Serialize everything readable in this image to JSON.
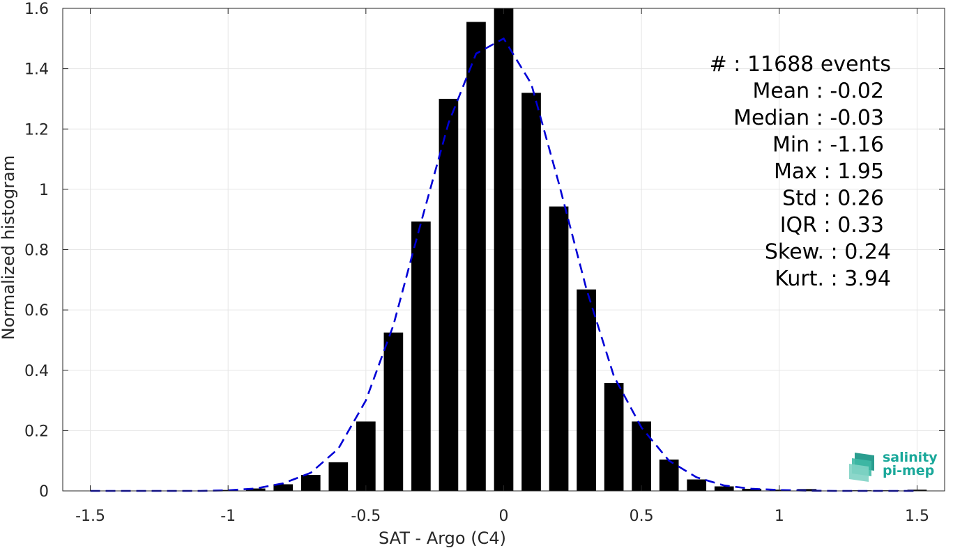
{
  "chart_data": {
    "type": "bar",
    "xlabel": "SAT - Argo (C4)",
    "ylabel": "Normalized histogram",
    "xlim": [
      -1.6,
      1.6
    ],
    "ylim": [
      0,
      1.6
    ],
    "xticks": [
      -1.5,
      -1,
      -0.5,
      0,
      0.5,
      1,
      1.5
    ],
    "xtick_labels": [
      "-1.5",
      "-1",
      "-0.5",
      "0",
      "0.5",
      "1",
      "1.5"
    ],
    "yticks": [
      0,
      0.2,
      0.4,
      0.6,
      0.8,
      1,
      1.2,
      1.4,
      1.6
    ],
    "ytick_labels": [
      "0",
      "0.2",
      "0.4",
      "0.6",
      "0.8",
      "1",
      "1.2",
      "1.4",
      "1.6"
    ],
    "grid": true,
    "bar_color": "#000000",
    "bar_width": 0.07,
    "bars": {
      "x": [
        -1.5,
        -1.4,
        -1.3,
        -1.2,
        -1.1,
        -1.0,
        -0.9,
        -0.8,
        -0.7,
        -0.6,
        -0.5,
        -0.4,
        -0.3,
        -0.2,
        -0.1,
        0.0,
        0.1,
        0.2,
        0.3,
        0.4,
        0.5,
        0.6,
        0.7,
        0.8,
        0.9,
        1.0,
        1.1,
        1.2,
        1.3,
        1.4,
        1.5
      ],
      "values": [
        0,
        0,
        0,
        0,
        0,
        0.003,
        0.008,
        0.022,
        0.053,
        0.095,
        0.23,
        0.525,
        0.893,
        1.3,
        1.555,
        1.6,
        1.32,
        0.943,
        0.668,
        0.358,
        0.23,
        0.104,
        0.038,
        0.015,
        0.007,
        0.004,
        0.006,
        0,
        0.002,
        0.002,
        0.004
      ]
    },
    "fit_curve": {
      "style": "dashed",
      "color": "#0000d6",
      "x": [
        -1.5,
        -1.4,
        -1.3,
        -1.2,
        -1.1,
        -1.0,
        -0.9,
        -0.8,
        -0.7,
        -0.6,
        -0.5,
        -0.4,
        -0.3,
        -0.2,
        -0.1,
        0.0,
        0.1,
        0.2,
        0.3,
        0.4,
        0.5,
        0.6,
        0.7,
        0.8,
        0.9,
        1.0,
        1.1,
        1.2,
        1.3,
        1.4,
        1.5
      ],
      "y": [
        0,
        0,
        0,
        0,
        0,
        0.002,
        0.008,
        0.025,
        0.06,
        0.14,
        0.3,
        0.55,
        0.89,
        1.22,
        1.45,
        1.5,
        1.35,
        1.02,
        0.67,
        0.38,
        0.21,
        0.1,
        0.045,
        0.018,
        0.007,
        0.003,
        0.001,
        0,
        0,
        0,
        0
      ]
    },
    "stats": [
      "#  : 11688 events",
      "Mean : -0.02",
      "Median : -0.03",
      "Min : -1.16",
      "Max : 1.95",
      "Std : 0.26",
      "IQR : 0.33",
      "Skew. : 0.24",
      "Kurt. : 3.94"
    ]
  },
  "logo": {
    "line1": "salinity",
    "line2": "pi-mep",
    "color": "#1aa89a"
  }
}
